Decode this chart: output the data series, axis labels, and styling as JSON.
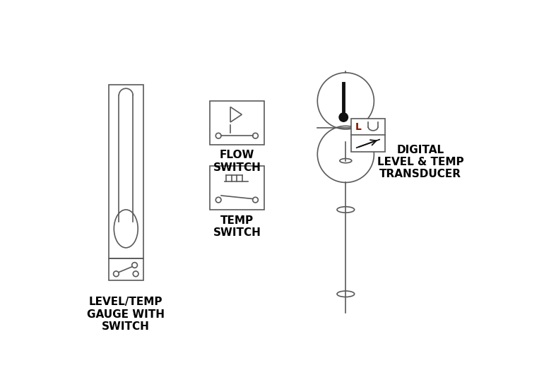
{
  "bg_color": "#ffffff",
  "line_color": "#5a5a5a",
  "text_color": "#000000",
  "symbol_lw": 1.2,
  "label1": "LEVEL/TEMP\nGAUGE WITH\nSWITCH",
  "label2": "FLOW\nSWITCH",
  "label3": "TEMP\nSWITCH",
  "label4": "DIGITAL\nLEVEL & TEMP\nTRANSDUCER",
  "label_L_color": "#8b1500"
}
